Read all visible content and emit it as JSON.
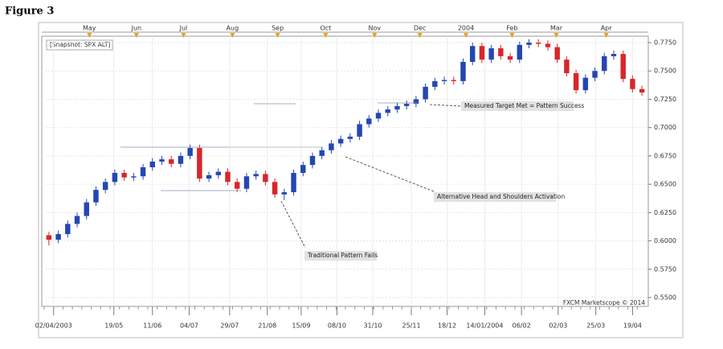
{
  "chart_data": {
    "type": "candlestick",
    "title": "Figure 3",
    "subtitle": "[Snapshot: SPX ALT]",
    "credit": "FXCM Marketscope © 2014",
    "annotations": [
      "Measured Target Met = Pattern Success",
      "Alternative Head and Shoulders Activation",
      "Traditional Pattern Fails"
    ],
    "up_color": "#2447b0",
    "down_color": "#d8262c",
    "grid": true,
    "xlim": [
      0,
      64
    ],
    "ylim": [
      0.55,
      0.775
    ],
    "yticks": [
      {
        "value": 0.55,
        "label": "0.5500"
      },
      {
        "value": 0.575,
        "label": "0.5750"
      },
      {
        "value": 0.6,
        "label": "0.6000"
      },
      {
        "value": 0.625,
        "label": "0.6250"
      },
      {
        "value": 0.65,
        "label": "0.6500"
      },
      {
        "value": 0.675,
        "label": "0.6750"
      },
      {
        "value": 0.7,
        "label": "0.7000"
      },
      {
        "value": 0.725,
        "label": "0.7250"
      },
      {
        "value": 0.75,
        "label": "0.7500"
      },
      {
        "value": 0.775,
        "label": "0.7750"
      }
    ],
    "xticks": [
      {
        "value": 1.0,
        "label": "02/04/2003"
      },
      {
        "value": 7.4,
        "label": "19/05"
      },
      {
        "value": 11.5,
        "label": "11/06"
      },
      {
        "value": 15.4,
        "label": "04/07"
      },
      {
        "value": 19.7,
        "label": "29/07"
      },
      {
        "value": 23.7,
        "label": "21/08"
      },
      {
        "value": 27.3,
        "label": "15/09"
      },
      {
        "value": 31.1,
        "label": "08/10"
      },
      {
        "value": 34.9,
        "label": "31/10"
      },
      {
        "value": 39.0,
        "label": "25/11"
      },
      {
        "value": 42.8,
        "label": "18/12"
      },
      {
        "value": 46.8,
        "label": "14/01/2004"
      },
      {
        "value": 50.7,
        "label": "06/02"
      },
      {
        "value": 54.6,
        "label": "02/03"
      },
      {
        "value": 58.6,
        "label": "25/03"
      },
      {
        "value": 62.5,
        "label": "19/04"
      }
    ],
    "top_ticks": [
      {
        "value": 4.8,
        "label": "May"
      },
      {
        "value": 9.8,
        "label": "Jun"
      },
      {
        "value": 14.8,
        "label": "Jul"
      },
      {
        "value": 20.0,
        "label": "Aug"
      },
      {
        "value": 24.8,
        "label": "Sep"
      },
      {
        "value": 29.9,
        "label": "Oct"
      },
      {
        "value": 35.1,
        "label": "Nov"
      },
      {
        "value": 39.9,
        "label": "Dec"
      },
      {
        "value": 44.8,
        "label": "2004"
      },
      {
        "value": 49.7,
        "label": "Feb"
      },
      {
        "value": 54.4,
        "label": "Mar"
      },
      {
        "value": 59.7,
        "label": "Apr"
      }
    ],
    "open": [
      0.605,
      0.601,
      0.606,
      0.615,
      0.622,
      0.634,
      0.645,
      0.652,
      0.66,
      0.656,
      0.657,
      0.665,
      0.67,
      0.672,
      0.668,
      0.675,
      0.682,
      0.655,
      0.658,
      0.661,
      0.652,
      0.646,
      0.657,
      0.659,
      0.652,
      0.641,
      0.643,
      0.66,
      0.667,
      0.675,
      0.68,
      0.686,
      0.69,
      0.692,
      0.703,
      0.708,
      0.713,
      0.716,
      0.719,
      0.721,
      0.725,
      0.736,
      0.741,
      0.742,
      0.741,
      0.758,
      0.772,
      0.76,
      0.77,
      0.763,
      0.76,
      0.773,
      0.775,
      0.774,
      0.771,
      0.76,
      0.748,
      0.733,
      0.744,
      0.75,
      0.763,
      0.765,
      0.743,
      0.734
    ],
    "high": [
      0.608,
      0.609,
      0.618,
      0.625,
      0.637,
      0.648,
      0.655,
      0.663,
      0.663,
      0.66,
      0.668,
      0.673,
      0.675,
      0.675,
      0.678,
      0.685,
      0.685,
      0.661,
      0.664,
      0.664,
      0.655,
      0.66,
      0.662,
      0.662,
      0.655,
      0.646,
      0.663,
      0.67,
      0.678,
      0.683,
      0.689,
      0.693,
      0.695,
      0.706,
      0.711,
      0.716,
      0.719,
      0.722,
      0.724,
      0.728,
      0.739,
      0.744,
      0.745,
      0.745,
      0.761,
      0.775,
      0.775,
      0.773,
      0.773,
      0.766,
      0.776,
      0.778,
      0.778,
      0.777,
      0.774,
      0.763,
      0.751,
      0.747,
      0.753,
      0.766,
      0.768,
      0.768,
      0.746,
      0.737
    ],
    "low": [
      0.596,
      0.598,
      0.603,
      0.612,
      0.619,
      0.631,
      0.642,
      0.649,
      0.653,
      0.653,
      0.654,
      0.662,
      0.667,
      0.665,
      0.665,
      0.672,
      0.652,
      0.652,
      0.655,
      0.649,
      0.643,
      0.643,
      0.654,
      0.649,
      0.638,
      0.636,
      0.64,
      0.657,
      0.664,
      0.672,
      0.677,
      0.683,
      0.687,
      0.689,
      0.7,
      0.705,
      0.71,
      0.713,
      0.716,
      0.718,
      0.722,
      0.733,
      0.738,
      0.738,
      0.738,
      0.755,
      0.757,
      0.757,
      0.76,
      0.757,
      0.757,
      0.77,
      0.771,
      0.768,
      0.757,
      0.745,
      0.73,
      0.73,
      0.741,
      0.747,
      0.76,
      0.74,
      0.731,
      0.728
    ],
    "close": [
      0.601,
      0.606,
      0.615,
      0.622,
      0.634,
      0.645,
      0.652,
      0.66,
      0.656,
      0.657,
      0.665,
      0.67,
      0.672,
      0.668,
      0.675,
      0.682,
      0.655,
      0.658,
      0.661,
      0.652,
      0.646,
      0.657,
      0.659,
      0.652,
      0.641,
      0.643,
      0.66,
      0.667,
      0.675,
      0.68,
      0.686,
      0.69,
      0.692,
      0.703,
      0.708,
      0.713,
      0.716,
      0.719,
      0.721,
      0.725,
      0.736,
      0.741,
      0.742,
      0.741,
      0.758,
      0.772,
      0.76,
      0.77,
      0.763,
      0.76,
      0.773,
      0.775,
      0.774,
      0.771,
      0.76,
      0.748,
      0.733,
      0.744,
      0.75,
      0.763,
      0.765,
      0.743,
      0.734,
      0.731
    ]
  }
}
